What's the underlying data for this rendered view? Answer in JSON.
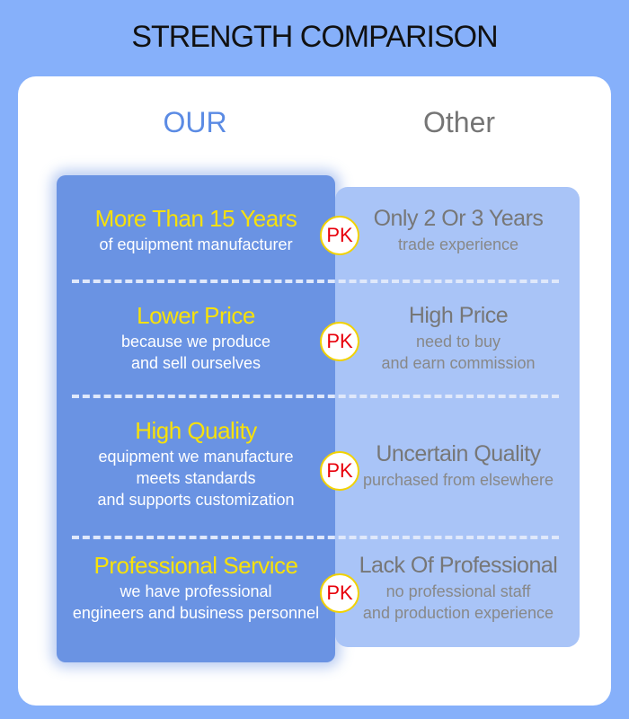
{
  "title": "STRENGTH COMPARISON",
  "columns": {
    "ours": "OUR",
    "other": "Other"
  },
  "pk_label": "PK",
  "rows": [
    {
      "ours_title": "More Than 15 Years",
      "ours_text": [
        "of equipment manufacturer"
      ],
      "other_title": "Only 2 Or 3 Years",
      "other_text": [
        "trade experience"
      ]
    },
    {
      "ours_title": "Lower Price",
      "ours_text": [
        "because we produce",
        "and sell ourselves"
      ],
      "other_title": "High Price",
      "other_text": [
        "need to buy",
        "and earn commission"
      ]
    },
    {
      "ours_title": "High Quality",
      "ours_text": [
        "equipment we manufacture",
        "meets standards",
        "and supports customization"
      ],
      "other_title": "Uncertain Quality",
      "other_text": [
        "purchased from elsewhere"
      ]
    },
    {
      "ours_title": "Professional Service",
      "ours_text": [
        "we have professional",
        "engineers and business personnel"
      ],
      "other_title": "Lack Of Professional",
      "other_text": [
        "no professional staff",
        "and production experience"
      ]
    }
  ],
  "colors": {
    "background": "#86b0fa",
    "ours_panel": "#6a93e3",
    "other_panel": "#a9c4f7",
    "ours_title": "#f7e10a",
    "pk_text": "#e8000b"
  }
}
